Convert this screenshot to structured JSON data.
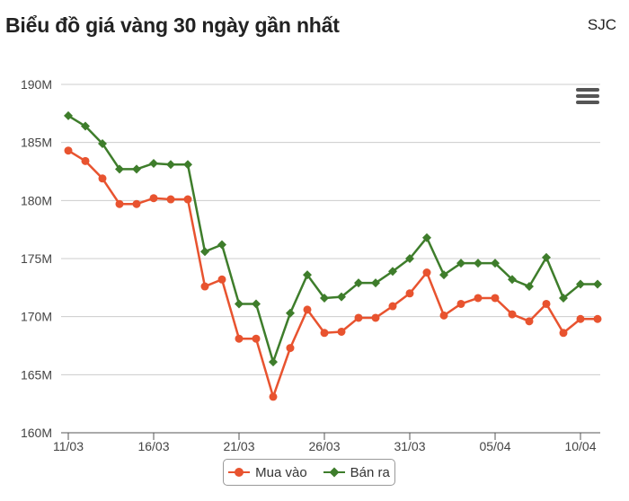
{
  "header": {
    "title": "Biểu đồ giá vàng 30 ngày gần nhất",
    "source": "SJC"
  },
  "menu": {
    "icon": "hamburger-menu-icon"
  },
  "chart_data": {
    "type": "line",
    "title": "Biểu đồ giá vàng 30 ngày gần nhất",
    "xlabel": "",
    "ylabel": "",
    "x_tick_labels": [
      "11/03",
      "16/03",
      "21/03",
      "26/03",
      "31/03",
      "05/04",
      "10/04"
    ],
    "x_tick_indices": [
      0,
      5,
      10,
      15,
      20,
      25,
      30
    ],
    "y_tick_labels": [
      "160M",
      "165M",
      "170M",
      "175M",
      "180M",
      "185M",
      "190M"
    ],
    "ylim": [
      160,
      190
    ],
    "y_unit": "M",
    "grid": "horizontal",
    "legend_position": "bottom-center",
    "categories": [
      "11/03",
      "12/03",
      "13/03",
      "14/03",
      "15/03",
      "16/03",
      "17/03",
      "18/03",
      "19/03",
      "20/03",
      "21/03",
      "22/03",
      "23/03",
      "24/03",
      "25/03",
      "26/03",
      "27/03",
      "28/03",
      "29/03",
      "30/03",
      "31/03",
      "01/04",
      "02/04",
      "03/04",
      "04/04",
      "05/04",
      "06/04",
      "07/04",
      "08/04",
      "09/04",
      "10/04",
      "11/04"
    ],
    "series": [
      {
        "name": "Mua vào",
        "color": "#e8532f",
        "marker": "circle",
        "values": [
          184.3,
          183.4,
          181.9,
          179.7,
          179.7,
          180.2,
          180.1,
          180.1,
          172.6,
          173.2,
          168.1,
          168.1,
          163.1,
          167.3,
          170.6,
          168.6,
          168.7,
          169.9,
          169.9,
          170.9,
          172.0,
          173.8,
          170.1,
          171.1,
          171.6,
          171.6,
          170.2,
          169.6,
          171.1,
          168.6,
          169.8,
          169.8
        ]
      },
      {
        "name": "Bán ra",
        "color": "#3e7d2b",
        "marker": "diamond",
        "values": [
          187.3,
          186.4,
          184.9,
          182.7,
          182.7,
          183.2,
          183.1,
          183.1,
          175.6,
          176.2,
          171.1,
          171.1,
          166.1,
          170.3,
          173.6,
          171.6,
          171.7,
          172.9,
          172.9,
          173.9,
          175.0,
          176.8,
          173.6,
          174.6,
          174.6,
          174.6,
          173.2,
          172.6,
          175.1,
          171.6,
          172.8,
          172.8
        ]
      }
    ]
  }
}
